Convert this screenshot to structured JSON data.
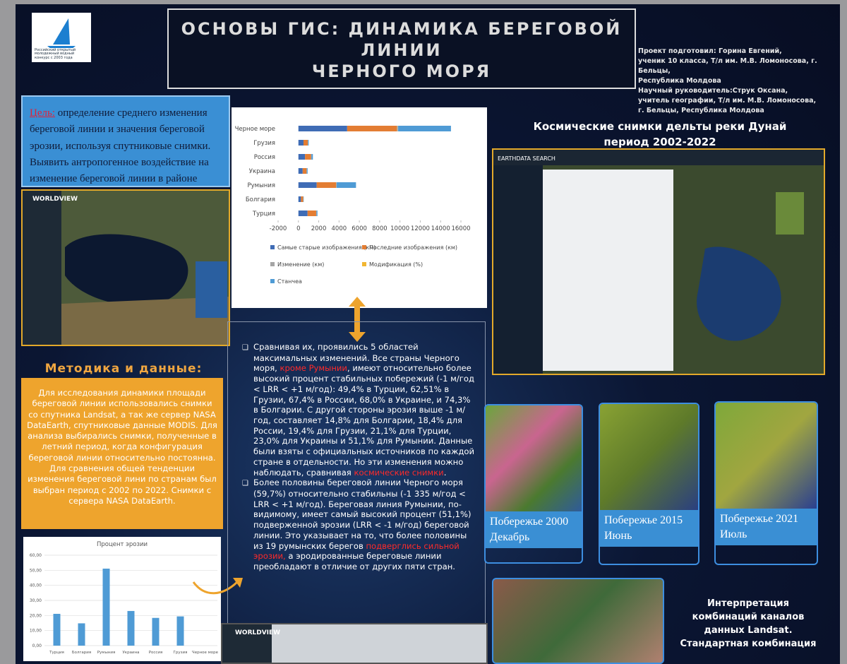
{
  "logo": {
    "text": "Российский открытый молодежный водный конкурс с 2003 года"
  },
  "header": {
    "title_lines": [
      "ОСНОВЫ ГИС: ДИНАМИКА БЕРЕГОВОЙ",
      "ЛИНИИ",
      "ЧЕРНОГО МОРЯ"
    ],
    "authors": [
      "Проект подготовил: Горина Евгений,",
      "ученик 10 класса, Т/л им. М.В. Ломоносова, г. Бельцы,",
      "Республика Молдова",
      "Научный руководитель:Струк Оксана,",
      "учитель географии, Т/л им. М.В. Ломоносова,",
      "г. Бельцы, Республика Молдова"
    ]
  },
  "goal": {
    "label": "Цель:",
    "text": "определение среднего изменения береговой линии и значения береговой эрозии, используя спутниковые снимки. Выявить антропогенное воздействие на изменение береговой линии в районе дельты реки Дунай"
  },
  "worldview": {
    "label": "WORLDVIEW"
  },
  "method": {
    "heading": "Методика и данные:",
    "text": "Для исследования динамики площади береговой линии использовались снимки со спутника Landsat, а так же сервер NASA DataEarth, спутниковые данные MODIS. Для анализа выбирались снимки, полученные в летний период, когда конфигурация береговой линии относительно постоянна. Для сравнения общей тенденции изменения береговой лини по странам был выбран период с 2002 по 2022. Снимки с сервера NASA DataEarth."
  },
  "bar_chart": {
    "type": "bar",
    "orientation": "horizontal",
    "stacked": true,
    "categories": [
      "Черное море",
      "Грузия",
      "Россия",
      "Украина",
      "Румыния",
      "Болгария",
      "Турция"
    ],
    "series": [
      {
        "name": "Самые старые изображения (км)",
        "color": "#3f6cb5",
        "values": [
          4800,
          500,
          650,
          420,
          1800,
          250,
          900
        ]
      },
      {
        "name": "Последние изображения (км)",
        "color": "#e37d33",
        "values": [
          4900,
          420,
          600,
          380,
          1900,
          220,
          850
        ]
      },
      {
        "name": "Изменение (км)",
        "color": "#a5a5a5",
        "values": [
          100,
          10,
          20,
          10,
          60,
          5,
          20
        ]
      },
      {
        "name": "Модификация (%)",
        "color": "#f2b632",
        "values": [
          20,
          5,
          5,
          5,
          10,
          5,
          5
        ]
      },
      {
        "name": "Станчеа",
        "color": "#4f9bd5",
        "values": [
          5200,
          80,
          150,
          90,
          1900,
          40,
          100
        ]
      }
    ],
    "xlim": [
      -2000,
      16000
    ],
    "xticks": [
      -2000,
      0,
      2000,
      4000,
      6000,
      8000,
      10000,
      12000,
      14000,
      16000
    ]
  },
  "erosion_chart": {
    "type": "bar",
    "title": "Процент эрозии",
    "categories": [
      "Турция",
      "Болгария",
      "Румыния",
      "Украина",
      "Россия",
      "Грузия",
      "Черное море"
    ],
    "values": [
      21.1,
      14.8,
      51.1,
      23.0,
      18.4,
      19.4,
      null
    ],
    "color": "#4f9bd5",
    "ylim": [
      0,
      60
    ],
    "yticks": [
      {
        "value": 0,
        "label": "0,00"
      },
      {
        "value": 10,
        "label": "10,00"
      },
      {
        "value": 20,
        "label": "20,00"
      },
      {
        "value": 30,
        "label": "30,00"
      },
      {
        "value": 40,
        "label": "40,00"
      },
      {
        "value": 50,
        "label": "50,00"
      },
      {
        "value": 60,
        "label": "60,00"
      }
    ],
    "grid": true
  },
  "satellite": {
    "heading_lines": [
      "Космические снимки дельты реки Дунай",
      "период 2002-2022"
    ],
    "search_label": "EARTHDATA SEARCH"
  },
  "main_text": {
    "paragraphs": [
      [
        "Сравнивая их, проявились 5 областей максимальных изменений. Все страны Черного моря, ",
        "кроме Румынии",
        ", имеют относительно более высокий процент стабильных побережий (-1 м/год < LRR < +1 м/год): 49,4% в Турции, 62,51% в Грузии, 67,4% в России, 68,0% в Украине, и 74,3% в Болгарии. С другой стороны эрозия выше -1 м/год, составляет 14,8% для Болгарии, 18,4% для России, 19,4% для Грузии, 21,1% для Турции, 23,0% для Украины и 51,1% для Румынии. Данные были взяты с официальных источников по каждой стране в отдельности. Но эти изменения можно наблюдать, сравнивая ",
        "космические снимки",
        "."
      ],
      [
        "Более половины береговой линии Черного моря (59,7%) относительно стабильны (-1 335 м/год < LRR < +1 м/год). Береговая линия Румынии, по-видимому, имеет самый высокий процент (51,1%) подверженной эрозии (LRR < -1 м/год) береговой линии. Это указывает на то, что более половины из 19 румынских берегов ",
        "подверглись сильной эрозии,",
        " а эродированные береговые линии преобладают в отличие от других  пяти стран."
      ]
    ]
  },
  "captions": [
    "Побережье 2000 Декабрь",
    "Побережье 2015 Июнь",
    "Побережье 2021 Июль"
  ],
  "interpretation": "Интерпретация комбинаций каналов данных Landsat. Стандартная комбинация"
}
